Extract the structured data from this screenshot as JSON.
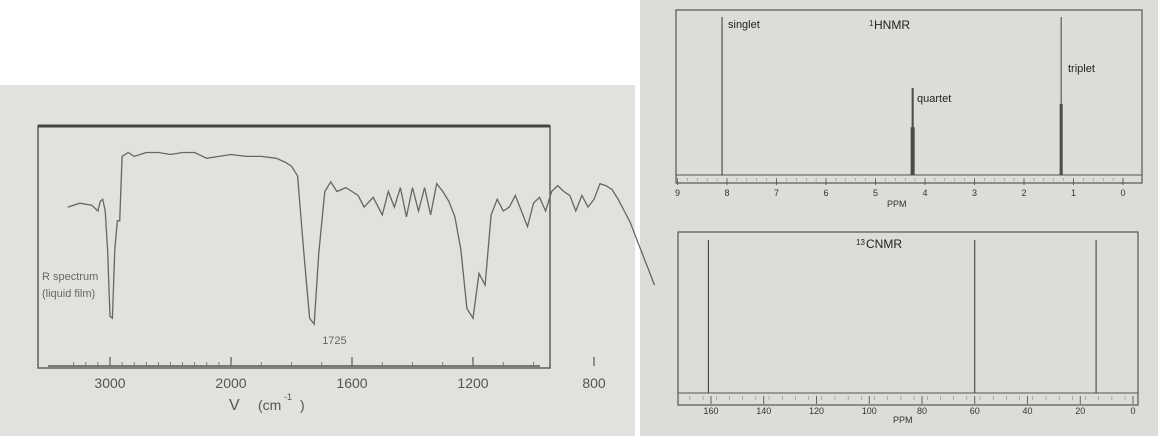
{
  "chart_data": [
    {
      "type": "line",
      "title": "R spectrum",
      "subtitle": "(liquid film)",
      "xlabel_symbol": "V",
      "xlabel_unit": "(cm",
      "xlabel_sup": "-1",
      "xlabel_close": ")",
      "xlim": [
        3350,
        550
      ],
      "xticks": [
        "3000",
        "2000",
        "1600",
        "1200",
        "800"
      ],
      "annotations": [
        {
          "x": 1725,
          "text": "1725"
        }
      ],
      "series": [
        {
          "x": [
            3350,
            3250,
            3150,
            3100,
            3080,
            3060,
            3040,
            3020,
            3000,
            2980,
            2960,
            2940,
            2920,
            2900,
            2850,
            2800,
            2700,
            2600,
            2500,
            2400,
            2300,
            2200,
            2100,
            2000,
            1950,
            1900,
            1850,
            1820,
            1800,
            1780,
            1760,
            1740,
            1725,
            1710,
            1690,
            1670,
            1650,
            1620,
            1600,
            1580,
            1560,
            1530,
            1500,
            1480,
            1460,
            1440,
            1420,
            1400,
            1380,
            1360,
            1340,
            1320,
            1300,
            1280,
            1260,
            1240,
            1220,
            1200,
            1180,
            1160,
            1140,
            1120,
            1100,
            1080,
            1060,
            1040,
            1020,
            1000,
            980,
            960,
            940,
            920,
            900,
            880,
            860,
            840,
            820,
            800,
            780,
            760,
            740,
            720,
            700,
            680,
            660,
            640,
            620,
            600
          ],
          "values": [
            62,
            64,
            63,
            60,
            65,
            66,
            60,
            40,
            6,
            5,
            40,
            55,
            55,
            88,
            90,
            88,
            90,
            90,
            89,
            90,
            90,
            87,
            88,
            89,
            88,
            88,
            87,
            85,
            83,
            78,
            40,
            5,
            2,
            38,
            70,
            75,
            70,
            72,
            70,
            68,
            62,
            67,
            58,
            70,
            62,
            72,
            57,
            72,
            60,
            72,
            58,
            74,
            70,
            65,
            57,
            40,
            10,
            5,
            28,
            22,
            58,
            66,
            60,
            62,
            68,
            60,
            52,
            64,
            67,
            60,
            70,
            73,
            70,
            68,
            60,
            68,
            62,
            66,
            74,
            73,
            71,
            66,
            60,
            54,
            46,
            38,
            30,
            22
          ]
        }
      ]
    },
    {
      "type": "line",
      "title_sup": "1",
      "title": "HNMR",
      "xlabel": "PPM",
      "xlim": [
        9,
        0
      ],
      "xticks": [
        "9",
        "8",
        "7",
        "6",
        "5",
        "4",
        "3",
        "2",
        "1",
        "0"
      ],
      "peaks": [
        {
          "ppm": 8.1,
          "height": 1.0,
          "label": "singlet"
        },
        {
          "ppm": 4.25,
          "height": 0.55,
          "label": "quartet"
        },
        {
          "ppm": 1.25,
          "height": 1.0,
          "label": "triplet"
        }
      ]
    },
    {
      "type": "line",
      "title_sup": "13",
      "title": "CNMR",
      "xlabel": "PPM",
      "xlim": [
        168,
        0
      ],
      "xticks": [
        "160",
        "140",
        "120",
        "100",
        "80",
        "60",
        "40",
        "20",
        "0"
      ],
      "peaks": [
        {
          "ppm": 161,
          "height": 1.0
        },
        {
          "ppm": 60,
          "height": 1.0
        },
        {
          "ppm": 14,
          "height": 1.0
        }
      ]
    }
  ],
  "colors": {
    "line": "#555555",
    "frame": "#555555",
    "text": "#555555",
    "nmr_text": "#222222"
  }
}
